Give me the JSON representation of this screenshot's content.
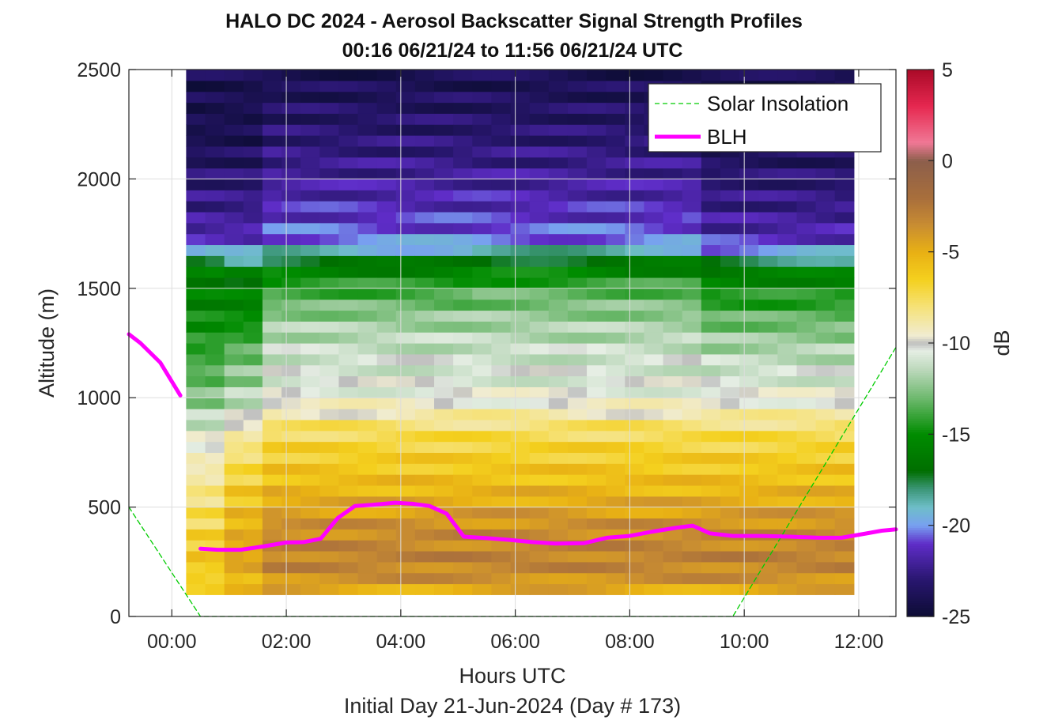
{
  "chart_data": {
    "type": "heatmap",
    "title_line1": "HALO DC 2024 - Aerosol Backscatter Signal Strength Profiles",
    "title_line2": "00:16 06/21/24 to 11:56 06/21/24  UTC",
    "xlabel": "Hours UTC",
    "xlabel2": "Initial Day 21-Jun-2024 (Day # 173)",
    "ylabel": "Altitude (m)",
    "colorbar_label": "dB",
    "x_ticks": [
      "00:00",
      "02:00",
      "04:00",
      "06:00",
      "08:00",
      "10:00",
      "12:00"
    ],
    "x_tick_values": [
      0,
      2,
      4,
      6,
      8,
      10,
      12
    ],
    "xlim": [
      -0.75,
      12.65
    ],
    "y_ticks": [
      "0",
      "500",
      "1000",
      "1500",
      "2000",
      "2500"
    ],
    "y_tick_values": [
      0,
      500,
      1000,
      1500,
      2000,
      2500
    ],
    "ylim": [
      0,
      2500
    ],
    "colorbar_ticks": [
      "5",
      "0",
      "-5",
      "-10",
      "-15",
      "-20",
      "-25"
    ],
    "colorbar_tick_values": [
      5,
      0,
      -5,
      -10,
      -15,
      -20,
      -25
    ],
    "clim": [
      -25,
      5
    ],
    "grid": true,
    "legend_position": "top-right",
    "heatmap": {
      "x_start": 0.25,
      "x_step": 0.3333,
      "y_start": 100,
      "y_step": 50,
      "x_count": 35,
      "y_count": 48,
      "z_units": "dB",
      "profile_control_points": {
        "altitudes_m": [
          100,
          140,
          250,
          400,
          600,
          800,
          880,
          950,
          1050,
          1200,
          1350,
          1500,
          1600,
          1650,
          1700,
          1800,
          2000,
          2200,
          2500
        ],
        "dB_by_column_group": [
          {
            "hours": [
              0.25,
              0.9
            ],
            "dB": [
              -6,
              -7,
              -6,
              -7,
              -8.5,
              -10,
              -11,
              -12,
              -13,
              -14,
              -15,
              -16,
              -16,
              -18,
              -21,
              -22,
              -23,
              -24,
              -24
            ]
          },
          {
            "hours": [
              1.0,
              1.6
            ],
            "dB": [
              -6,
              -5.5,
              -4.5,
              -5,
              -6.5,
              -8.5,
              -9.5,
              -11,
              -12,
              -13,
              -15,
              -16,
              -17,
              -19,
              -21,
              -22,
              -23,
              -24,
              -24
            ]
          },
          {
            "hours": [
              1.7,
              5.0
            ],
            "dB": [
              -6,
              -4,
              -3,
              -3.5,
              -5.5,
              -7,
              -8,
              -9.5,
              -10.5,
              -11,
              -12,
              -14,
              -16,
              -18,
              -20,
              -21,
              -22,
              -23,
              -24
            ]
          },
          {
            "hours": [
              5.1,
              9.0
            ],
            "dB": [
              -6,
              -4,
              -3,
              -3.5,
              -5.5,
              -7,
              -8,
              -9.5,
              -10.5,
              -11,
              -12,
              -13.5,
              -16,
              -17.5,
              -20,
              -21,
              -22,
              -23,
              -24
            ]
          },
          {
            "hours": [
              9.1,
              11.9
            ],
            "dB": [
              -6,
              -4,
              -3,
              -3.5,
              -5.5,
              -7,
              -8,
              -9.5,
              -10.5,
              -11.5,
              -13,
              -15,
              -16.5,
              -19,
              -21,
              -22,
              -23,
              -24,
              -24
            ]
          }
        ]
      }
    },
    "series": [
      {
        "name": "Solar Insolation",
        "style": "dashed",
        "color": "#00cc00",
        "x": [
          -0.75,
          0.5,
          9.8,
          12.65
        ],
        "y": [
          500,
          0,
          0,
          1230
        ]
      },
      {
        "name": "BLH",
        "style": "solid",
        "color": "#ff00ff",
        "segments": [
          {
            "x": [
              -0.75,
              -0.55,
              -0.2,
              0.15
            ],
            "y": [
              1290,
              1250,
              1160,
              1010
            ]
          },
          {
            "x": [
              0.5,
              0.8,
              1.2,
              1.6,
              2.0,
              2.3,
              2.6,
              2.9,
              3.2,
              3.5,
              3.9,
              4.2,
              4.5,
              4.8,
              5.1,
              5.5,
              5.9,
              6.3,
              6.7,
              7.2,
              7.6,
              8.0,
              8.4,
              8.8,
              9.1,
              9.4,
              9.8,
              10.3,
              10.8,
              11.3,
              11.7,
              12.1,
              12.4,
              12.65
            ],
            "y": [
              310,
              305,
              305,
              320,
              338,
              340,
              355,
              450,
              505,
              510,
              520,
              515,
              505,
              470,
              365,
              358,
              350,
              340,
              333,
              335,
              360,
              368,
              388,
              405,
              415,
              380,
              368,
              368,
              365,
              360,
              360,
              378,
              392,
              398
            ]
          }
        ]
      }
    ]
  }
}
